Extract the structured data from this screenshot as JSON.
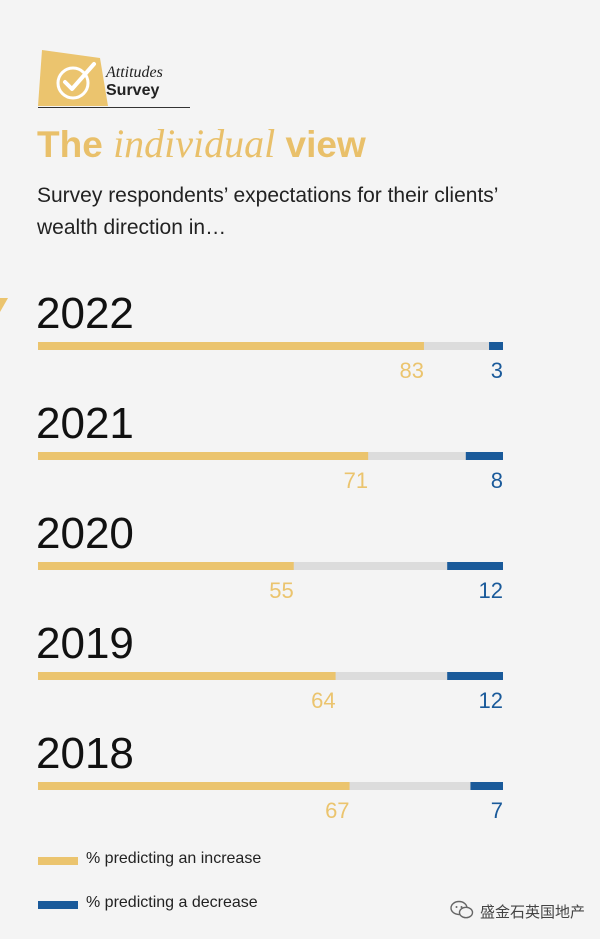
{
  "badge": {
    "line1": "Attitudes",
    "line2": "Survey"
  },
  "title": {
    "part1": "The ",
    "italic": "individual",
    "part2": " view"
  },
  "subtitle": "Survey respondents’ expectations for their clients’ wealth direction in…",
  "colors": {
    "increase": "#ebc46e",
    "decrease": "#1a5a9a",
    "neutral": "#dcdcdc",
    "title": "#e9c06a"
  },
  "chart_data": {
    "type": "bar",
    "orientation": "horizontal",
    "stacked": true,
    "categories": [
      "2022",
      "2021",
      "2020",
      "2019",
      "2018"
    ],
    "series": [
      {
        "name": "% predicting an increase",
        "values": [
          83,
          71,
          55,
          64,
          67
        ]
      },
      {
        "name": "% predicting a decrease",
        "values": [
          3,
          8,
          12,
          12,
          7
        ]
      }
    ],
    "xlim": [
      0,
      100
    ],
    "grid": false,
    "legend": "bottom-left"
  },
  "legend": {
    "increase": "% predicting an increase",
    "decrease": "% predicting a decrease"
  },
  "watermark": "盛金石英国地产"
}
